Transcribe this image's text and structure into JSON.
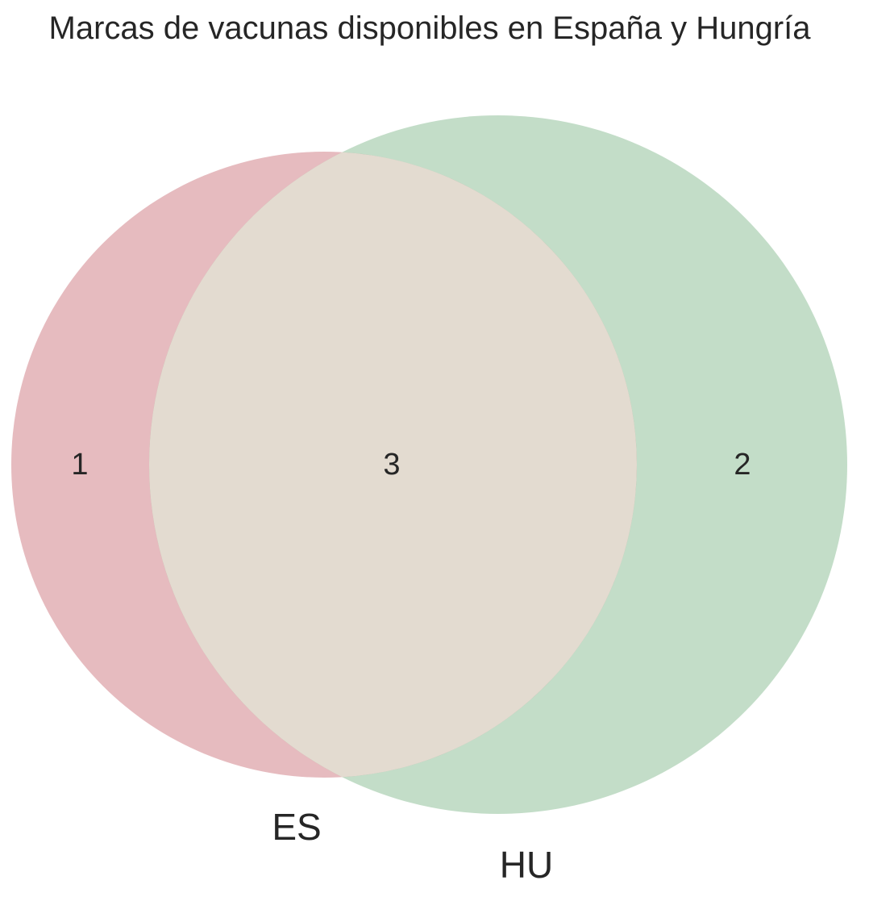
{
  "chart_data": {
    "type": "venn",
    "title": "Marcas de vacunas disponibles en España y Hungría",
    "sets": [
      {
        "name": "ES",
        "color": "#c0565e"
      },
      {
        "name": "HU",
        "color": "#6aab75"
      }
    ],
    "regions": {
      "ES_only": 1,
      "intersection": 3,
      "HU_only": 2
    },
    "intersection_color": "#e3dbd0"
  }
}
